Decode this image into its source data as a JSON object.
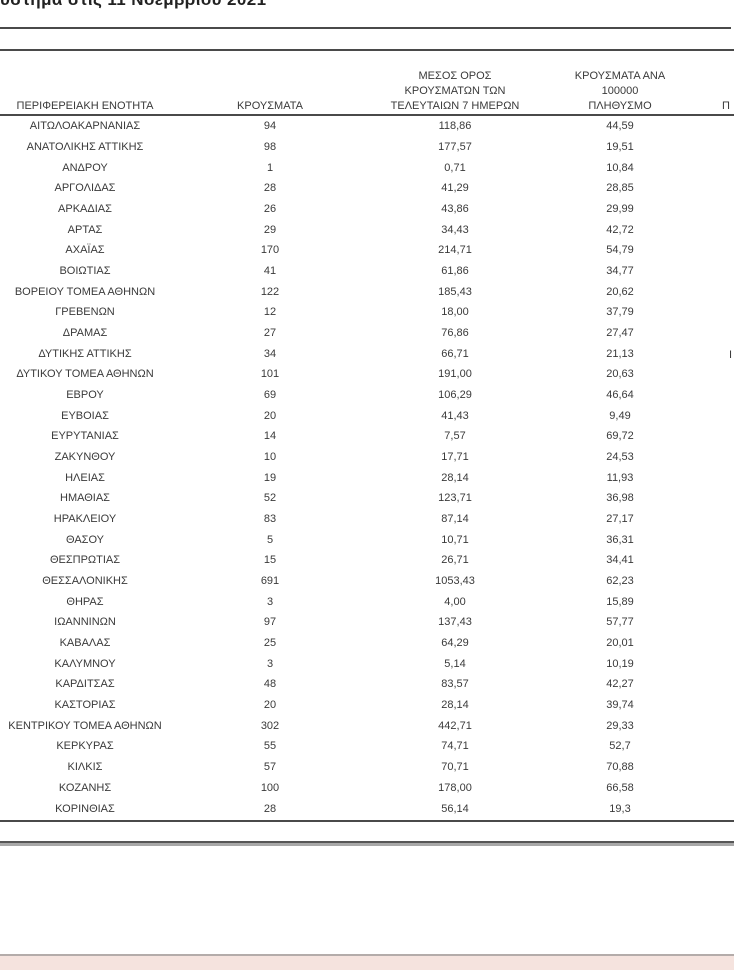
{
  "page": {
    "title_fragment": "ύστημα στις 11 Νοεμβρίου 2021"
  },
  "colors": {
    "rule_dark": "#4a4a4a",
    "footer_bar": "#f5e3de",
    "footer_line": "#b4acaa"
  },
  "table": {
    "headers": {
      "region": "ΠΕΡΙΦΕΡΕΙΑΚΗ ΕΝΟΤΗΤΑ",
      "cases": "ΚΡΟΥΣΜΑΤΑ",
      "avg7days": "ΜΕΣΟΣ ΟΡΟΣ\nΚΡΟΥΣΜΑΤΩΝ ΤΩΝ\nΤΕΛΕΥΤΑΙΩΝ 7 ΗΜΕΡΩΝ",
      "per100k": "ΚΡΟΥΣΜΑΤΑ ΑΝΑ 100000\nΠΛΗΘΥΣΜΟ",
      "right_table_fragment": "Π"
    },
    "right_row_fragment": "Ι",
    "rows": [
      {
        "region": "ΑΙΤΩΛΟΑΚΑΡΝΑΝΙΑΣ",
        "cases": "94",
        "avg7": "118,86",
        "per100k": "44,59"
      },
      {
        "region": "ΑΝΑΤΟΛΙΚΗΣ ΑΤΤΙΚΗΣ",
        "cases": "98",
        "avg7": "177,57",
        "per100k": "19,51"
      },
      {
        "region": "ΑΝΔΡΟΥ",
        "cases": "1",
        "avg7": "0,71",
        "per100k": "10,84"
      },
      {
        "region": "ΑΡΓΟΛΙΔΑΣ",
        "cases": "28",
        "avg7": "41,29",
        "per100k": "28,85"
      },
      {
        "region": "ΑΡΚΑΔΙΑΣ",
        "cases": "26",
        "avg7": "43,86",
        "per100k": "29,99"
      },
      {
        "region": "ΑΡΤΑΣ",
        "cases": "29",
        "avg7": "34,43",
        "per100k": "42,72"
      },
      {
        "region": "ΑΧΑΪΑΣ",
        "cases": "170",
        "avg7": "214,71",
        "per100k": "54,79"
      },
      {
        "region": "ΒΟΙΩΤΙΑΣ",
        "cases": "41",
        "avg7": "61,86",
        "per100k": "34,77"
      },
      {
        "region": "ΒΟΡΕΙΟΥ ΤΟΜΕΑ ΑΘΗΝΩΝ",
        "cases": "122",
        "avg7": "185,43",
        "per100k": "20,62"
      },
      {
        "region": "ΓΡΕΒΕΝΩΝ",
        "cases": "12",
        "avg7": "18,00",
        "per100k": "37,79"
      },
      {
        "region": "ΔΡΑΜΑΣ",
        "cases": "27",
        "avg7": "76,86",
        "per100k": "27,47"
      },
      {
        "region": "ΔΥΤΙΚΗΣ ΑΤΤΙΚΗΣ",
        "cases": "34",
        "avg7": "66,71",
        "per100k": "21,13"
      },
      {
        "region": "ΔΥΤΙΚΟΥ ΤΟΜΕΑ ΑΘΗΝΩΝ",
        "cases": "101",
        "avg7": "191,00",
        "per100k": "20,63"
      },
      {
        "region": "ΕΒΡΟΥ",
        "cases": "69",
        "avg7": "106,29",
        "per100k": "46,64"
      },
      {
        "region": "ΕΥΒΟΙΑΣ",
        "cases": "20",
        "avg7": "41,43",
        "per100k": "9,49"
      },
      {
        "region": "ΕΥΡΥΤΑΝΙΑΣ",
        "cases": "14",
        "avg7": "7,57",
        "per100k": "69,72"
      },
      {
        "region": "ΖΑΚΥΝΘΟΥ",
        "cases": "10",
        "avg7": "17,71",
        "per100k": "24,53"
      },
      {
        "region": "ΗΛΕΙΑΣ",
        "cases": "19",
        "avg7": "28,14",
        "per100k": "11,93"
      },
      {
        "region": "ΗΜΑΘΙΑΣ",
        "cases": "52",
        "avg7": "123,71",
        "per100k": "36,98"
      },
      {
        "region": "ΗΡΑΚΛΕΙΟΥ",
        "cases": "83",
        "avg7": "87,14",
        "per100k": "27,17"
      },
      {
        "region": "ΘΑΣΟΥ",
        "cases": "5",
        "avg7": "10,71",
        "per100k": "36,31"
      },
      {
        "region": "ΘΕΣΠΡΩΤΙΑΣ",
        "cases": "15",
        "avg7": "26,71",
        "per100k": "34,41"
      },
      {
        "region": "ΘΕΣΣΑΛΟΝΙΚΗΣ",
        "cases": "691",
        "avg7": "1053,43",
        "per100k": "62,23"
      },
      {
        "region": "ΘΗΡΑΣ",
        "cases": "3",
        "avg7": "4,00",
        "per100k": "15,89"
      },
      {
        "region": "ΙΩΑΝΝΙΝΩΝ",
        "cases": "97",
        "avg7": "137,43",
        "per100k": "57,77"
      },
      {
        "region": "ΚΑΒΑΛΑΣ",
        "cases": "25",
        "avg7": "64,29",
        "per100k": "20,01"
      },
      {
        "region": "ΚΑΛΥΜΝΟΥ",
        "cases": "3",
        "avg7": "5,14",
        "per100k": "10,19"
      },
      {
        "region": "ΚΑΡΔΙΤΣΑΣ",
        "cases": "48",
        "avg7": "83,57",
        "per100k": "42,27"
      },
      {
        "region": "ΚΑΣΤΟΡΙΑΣ",
        "cases": "20",
        "avg7": "28,14",
        "per100k": "39,74"
      },
      {
        "region": "ΚΕΝΤΡΙΚΟΥ ΤΟΜΕΑ ΑΘΗΝΩΝ",
        "cases": "302",
        "avg7": "442,71",
        "per100k": "29,33"
      },
      {
        "region": "ΚΕΡΚΥΡΑΣ",
        "cases": "55",
        "avg7": "74,71",
        "per100k": "52,7"
      },
      {
        "region": "ΚΙΛΚΙΣ",
        "cases": "57",
        "avg7": "70,71",
        "per100k": "70,88"
      },
      {
        "region": "ΚΟΖΑΝΗΣ",
        "cases": "100",
        "avg7": "178,00",
        "per100k": "66,58"
      },
      {
        "region": "ΚΟΡΙΝΘΙΑΣ",
        "cases": "28",
        "avg7": "56,14",
        "per100k": "19,3"
      }
    ]
  }
}
